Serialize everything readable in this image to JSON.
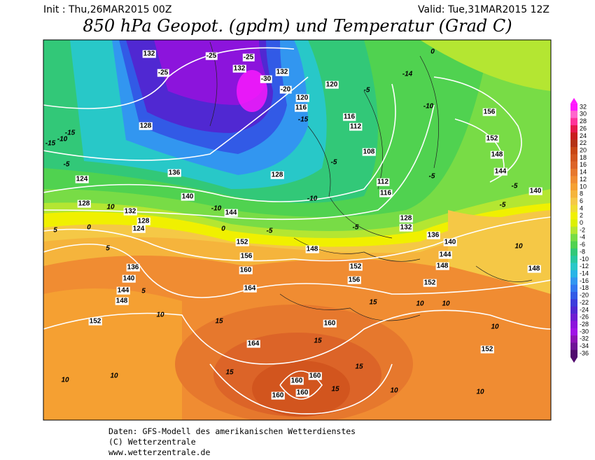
{
  "map": {
    "header": {
      "init": "Init : Thu,26MAR2015 00Z",
      "valid": "Valid: Tue,31MAR2015 12Z",
      "title": "850 hPa Geopot. (gpdm) und Temperatur (Grad C)"
    },
    "colorbar": {
      "ticks": [
        32,
        30,
        28,
        26,
        24,
        22,
        20,
        18,
        16,
        14,
        12,
        10,
        8,
        6,
        4,
        2,
        0,
        -2,
        -4,
        -6,
        -8,
        -10,
        -12,
        -14,
        -16,
        -18,
        -20,
        -22,
        -24,
        -26,
        -28,
        -30,
        -32,
        -34,
        -36
      ],
      "colors": [
        "#ff19ff",
        "#ff66cc",
        "#ff3399",
        "#e6194b",
        "#c81e1e",
        "#b43214",
        "#c84614",
        "#d2551e",
        "#dc6428",
        "#e6782d",
        "#f08c32",
        "#f5a032",
        "#f5b43c",
        "#f5c846",
        "#f0dc32",
        "#f0f000",
        "#dcf000",
        "#b4e632",
        "#78dc46",
        "#50d250",
        "#32c878",
        "#28c8a0",
        "#28c8c8",
        "#28b4e6",
        "#3296f0",
        "#3278f0",
        "#325ae6",
        "#3c3cdc",
        "#5028d2",
        "#6e1ed2",
        "#8c14dc",
        "#a014e6",
        "#8c14b4",
        "#6e1496",
        "#500a6e"
      ]
    },
    "contour_labels": [
      132,
      -25,
      -25,
      -25,
      132,
      132,
      -30,
      -20,
      120,
      116,
      -15,
      120,
      -5,
      -14,
      0,
      -10,
      156,
      152,
      148,
      144,
      140,
      -5,
      136,
      140,
      144,
      148,
      10,
      148,
      152,
      152,
      10,
      10,
      10,
      15,
      15,
      160,
      160,
      160,
      160,
      164,
      15,
      164,
      160,
      156,
      152,
      148,
      152,
      156,
      160,
      15,
      15,
      10,
      10,
      10,
      152,
      148,
      144,
      140,
      136,
      124,
      128,
      132,
      128,
      124,
      -5,
      -10,
      -15,
      -15,
      128,
      136,
      140,
      -10,
      144,
      128,
      -10,
      0,
      -5,
      -5,
      132,
      128,
      116,
      112,
      108,
      -5,
      116,
      112,
      -5,
      -5,
      15,
      10,
      10,
      10,
      0,
      5,
      5,
      5
    ],
    "footer": [
      "Daten: GFS-Modell des amerikanischen Wetterdienstes",
      "(C) Wetterzentrale",
      "www.wetterzentrale.de"
    ]
  }
}
